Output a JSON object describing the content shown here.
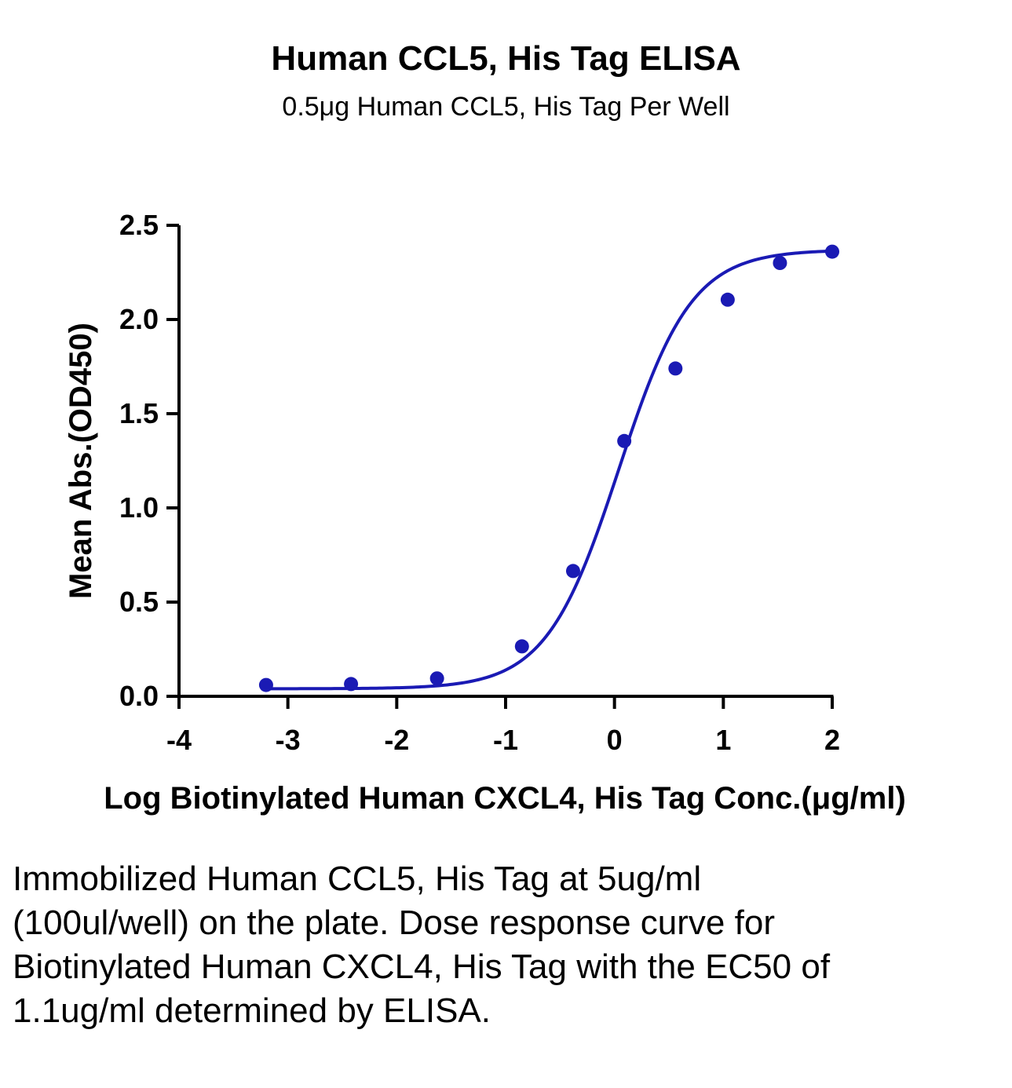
{
  "chart_data": {
    "type": "scatter",
    "title": "Human CCL5, His Tag ELISA",
    "subtitle": "0.5μg Human CCL5, His Tag Per Well",
    "xlabel": "Log Biotinylated Human CXCL4, His Tag Conc.(μg/ml)",
    "ylabel": "Mean Abs.(OD450)",
    "xlim": [
      -4,
      2
    ],
    "ylim": [
      0,
      2.5
    ],
    "x_ticks": [
      "-4",
      "-3",
      "-2",
      "-1",
      "0",
      "1",
      "2"
    ],
    "y_ticks": [
      "0.0",
      "0.5",
      "1.0",
      "1.5",
      "2.0",
      "2.5"
    ],
    "grid": false,
    "series": [
      {
        "x": [
          -3.2,
          -2.42,
          -1.63,
          -0.85,
          -0.38,
          0.09,
          0.56,
          1.04,
          1.52,
          2.0
        ],
        "y": [
          0.06,
          0.065,
          0.095,
          0.265,
          0.665,
          1.355,
          1.74,
          2.105,
          2.3,
          2.36
        ],
        "color": "#1a1ab4"
      }
    ],
    "fit_curve": {
      "type": "4PL",
      "bottom": 0.04,
      "top": 2.37,
      "log_ec50": 0.04,
      "hill_slope": 1.3,
      "color": "#1a1ab4"
    }
  },
  "caption": "Immobilized Human CCL5, His Tag at 5ug/ml (100ul/well) on the plate. Dose response curve for Biotinylated Human CXCL4, His Tag with the EC50 of 1.1ug/ml determined by ELISA."
}
